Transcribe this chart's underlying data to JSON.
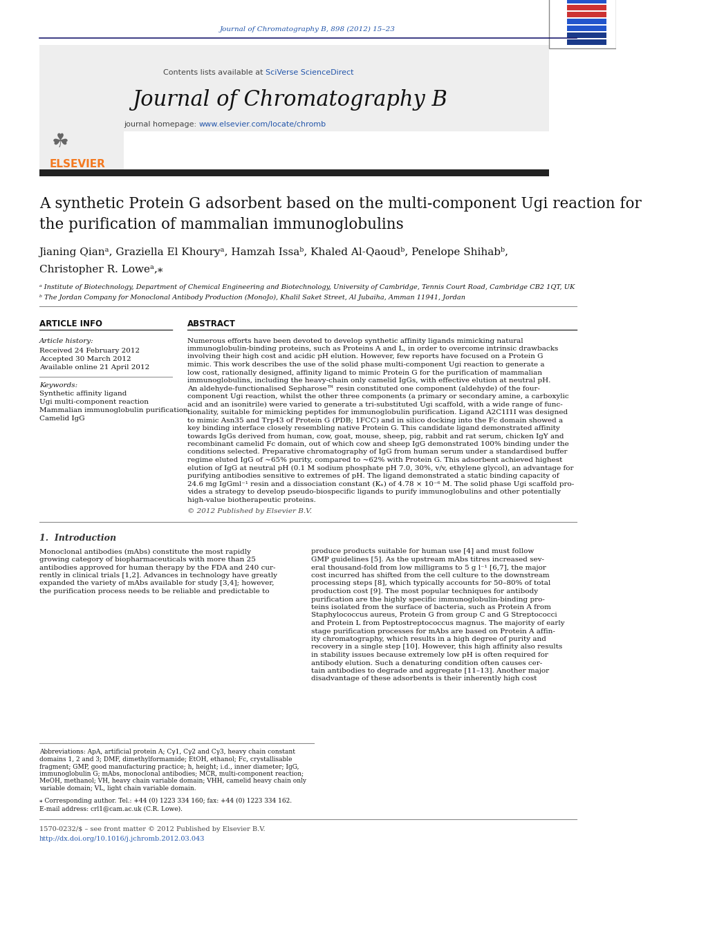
{
  "page_bg": "#ffffff",
  "top_citation": "Journal of Chromatography B, 898 (2012) 15–23",
  "journal_name": "Journal of Chromatography B",
  "contents_text": "Contents lists available at SciVerse ScienceDirect",
  "homepage_text": "journal homepage: www.elsevier.com/locate/chromb",
  "title_line1": "A synthetic Protein G adsorbent based on the multi-component Ugi reaction for",
  "title_line2": "the purification of mammalian immunoglobulins",
  "authors": "Jianing Qianᵃ, Graziella El Khouryᵃ, Hamzah Issaᵇ, Khaled Al-Qaoudᵇ, Penelope Shihabᵇ,",
  "authors2": "Christopher R. Loweᵃ,⁎",
  "affil_a": "ᵃ Institute of Biotechnology, Department of Chemical Engineering and Biotechnology, University of Cambridge, Tennis Court Road, Cambridge CB2 1QT, UK",
  "affil_b": "ᵇ The Jordan Company for Monoclonal Antibody Production (MonoJo), Khalil Saket Street, Al Jubaiha, Amman 11941, Jordan",
  "article_info_header": "ARTICLE INFO",
  "article_history_label": "Article history:",
  "received": "Received 24 February 2012",
  "accepted": "Accepted 30 March 2012",
  "available": "Available online 21 April 2012",
  "keywords_label": "Keywords:",
  "kw1": "Synthetic affinity ligand",
  "kw2": "Ugi multi-component reaction",
  "kw3": "Mammalian immunoglobulin purification",
  "kw4": "Camelid IgG",
  "abstract_header": "ABSTRACT",
  "copyright": "© 2012 Published by Elsevier B.V.",
  "intro_header": "1.  Introduction",
  "corr_author": "⁎ Corresponding author. Tel.: +44 (0) 1223 334 160; fax: +44 (0) 1223 334 162.",
  "email": "E-mail address: crl1@cam.ac.uk (C.R. Lowe).",
  "issn_text": "1570-0232/$ – see front matter © 2012 Published by Elsevier B.V.",
  "doi_text": "http://dx.doi.org/10.1016/j.jchromb.2012.03.043",
  "header_bg": "#f0f0f0",
  "dark_bar_color": "#1a1a2e",
  "elsevier_orange": "#f47920",
  "link_color": "#2255aa",
  "section_header_color": "#333333"
}
